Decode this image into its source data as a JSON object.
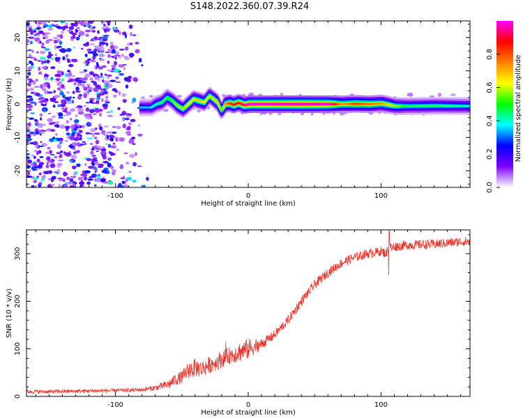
{
  "title": "S148.2022.360.07.39.R24",
  "chart_data": [
    {
      "type": "heatmap",
      "xlabel": "Height of straight line (km)",
      "ylabel": "Frequency (Hz)",
      "xlim": [
        -167,
        167
      ],
      "ylim": [
        -25,
        25
      ],
      "xticks": [
        -100,
        0,
        100
      ],
      "yticks": [
        -20,
        -10,
        0,
        10,
        20
      ],
      "xticklabels": [
        "-100",
        "0",
        "100"
      ],
      "yticklabels": [
        "-20",
        "-10",
        "0",
        "10",
        "20"
      ],
      "colorbar": {
        "label": "Normalized spectral amplitude",
        "range": [
          0,
          1
        ],
        "ticks": [
          0.0,
          0.2,
          0.4,
          0.6,
          0.8
        ],
        "ticklabels": [
          "0.0",
          "0.2",
          "0.4",
          "0.6",
          "0.8"
        ],
        "colors": [
          "#ffffff",
          "#7f00ff",
          "#0000ff",
          "#00ffff",
          "#00ff00",
          "#ffff00",
          "#ff7f00",
          "#ff0000",
          "#ff00ff"
        ]
      },
      "noise_region_x": [
        -167,
        -75
      ],
      "ridge": {
        "x": [
          -82,
          -78,
          -74,
          -70,
          -66,
          -62,
          -58,
          -54,
          -50,
          -46,
          -42,
          -38,
          -34,
          -30,
          -27,
          -24,
          -21,
          -18,
          -15,
          -12,
          -8,
          -4,
          0,
          20,
          40,
          60,
          70,
          80,
          90,
          100,
          110,
          120,
          140,
          167
        ],
        "freq": [
          -1,
          -1,
          -1,
          0,
          0.5,
          2,
          1,
          -0.5,
          -1.5,
          0,
          1.5,
          1,
          0.5,
          2.5,
          1.5,
          0.5,
          -2,
          0,
          0.3,
          -0.2,
          0.4,
          -0.3,
          0,
          0,
          0,
          0,
          0,
          0.1,
          0,
          0.2,
          -0.6,
          -0.6,
          -0.5,
          -0.6
        ],
        "amp": [
          0.25,
          0.3,
          0.35,
          0.4,
          0.45,
          0.45,
          0.5,
          0.55,
          0.55,
          0.6,
          0.6,
          0.65,
          0.6,
          0.55,
          0.6,
          0.65,
          0.5,
          0.7,
          0.8,
          0.85,
          0.85,
          0.9,
          0.95,
          0.98,
          1.0,
          0.95,
          0.7,
          0.8,
          0.75,
          0.7,
          0.55,
          0.45,
          0.45,
          0.4
        ]
      },
      "grid": false
    },
    {
      "type": "line",
      "xlabel": "Height of straight line (km)",
      "ylabel": "SNR (10 * v/v)",
      "xlim": [
        -167,
        167
      ],
      "ylim": [
        0,
        350
      ],
      "xticks": [
        -100,
        0,
        100
      ],
      "yticks": [
        0,
        100,
        200,
        300
      ],
      "xticklabels": [
        "-100",
        "0",
        "100"
      ],
      "yticklabels": [
        "0",
        "100",
        "200",
        "300"
      ],
      "series": [
        {
          "color": "#e8352b",
          "x": [
            -167,
            -150,
            -130,
            -110,
            -90,
            -80,
            -70,
            -60,
            -55,
            -50,
            -45,
            -40,
            -35,
            -30,
            -25,
            -20,
            -15,
            -10,
            -5,
            0,
            10,
            20,
            30,
            40,
            50,
            60,
            70,
            80,
            90,
            100,
            104,
            106,
            108,
            110,
            120,
            140,
            160,
            167
          ],
          "y": [
            10,
            10,
            11,
            12,
            13,
            14,
            18,
            25,
            35,
            40,
            55,
            60,
            58,
            65,
            70,
            78,
            85,
            90,
            95,
            100,
            110,
            130,
            160,
            200,
            235,
            260,
            280,
            292,
            300,
            305,
            300,
            320,
            310,
            315,
            318,
            320,
            325,
            326
          ],
          "noise": [
            4,
            4,
            4,
            4,
            4,
            4,
            6,
            10,
            12,
            14,
            18,
            20,
            18,
            18,
            18,
            18,
            18,
            20,
            22,
            22,
            12,
            10,
            10,
            10,
            10,
            10,
            10,
            10,
            10,
            10,
            10,
            10,
            10,
            10,
            10,
            10,
            10,
            10
          ]
        }
      ],
      "annotations": [
        {
          "x": 106,
          "y": 350,
          "text": ""
        }
      ],
      "grid": false
    }
  ]
}
